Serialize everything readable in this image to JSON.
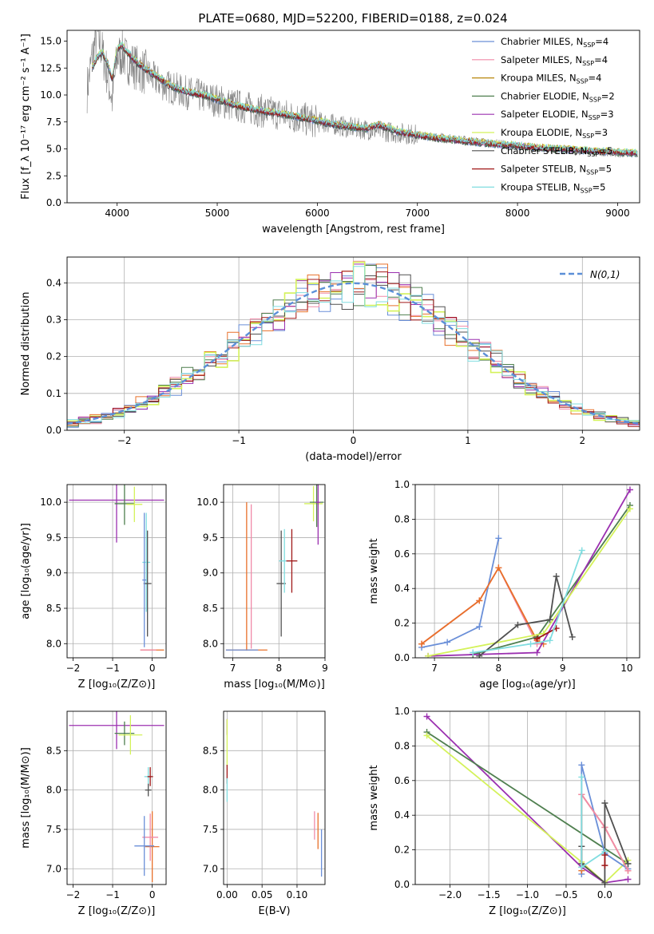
{
  "figure_title": "PLATE=0680, MJD=52200, FIBERID=0188, z=0.024",
  "chart_data": [
    {
      "id": "spectrum",
      "type": "line",
      "title": "PLATE=0680, MJD=52200, FIBERID=0188, z=0.024",
      "xlabel": "wavelength [Angstrom, rest frame]",
      "ylabel": "Flux [f_λ 10⁻¹⁷ erg cm⁻² s⁻¹ A⁻¹]",
      "xlim": [
        3500,
        9220
      ],
      "ylim": [
        0,
        16
      ],
      "xticks": [
        4000,
        5000,
        6000,
        7000,
        8000,
        9000
      ],
      "yticks": [
        0.0,
        2.5,
        5.0,
        7.5,
        10.0,
        12.5,
        15.0
      ],
      "grid": false,
      "legend_position": "upper-right",
      "observed_spectrum": {
        "color": "#808080",
        "x": [
          3700,
          3750,
          3800,
          3850,
          3900,
          3950,
          4000,
          4050,
          4100,
          4200,
          4300,
          4400,
          4500,
          4600,
          4700,
          4800,
          4900,
          5000,
          5100,
          5200,
          5300,
          5400,
          5500,
          5600,
          5700,
          5800,
          5900,
          6000,
          6100,
          6200,
          6300,
          6400,
          6500,
          6600,
          6700,
          6800,
          6900,
          7000,
          7100,
          7200,
          7300,
          7400,
          7500,
          7600,
          7700,
          7800,
          7900,
          8000,
          8100,
          8200,
          8300,
          8400,
          8500,
          8600,
          8700,
          8800,
          8900,
          9000,
          9100
        ],
        "y": [
          10.5,
          13.5,
          15.8,
          14.0,
          12.0,
          9.5,
          13.5,
          13.8,
          13.2,
          12.5,
          12.0,
          11.3,
          10.8,
          10.5,
          10.2,
          10.0,
          9.7,
          9.5,
          9.2,
          9.0,
          8.8,
          8.6,
          8.4,
          8.3,
          8.1,
          7.9,
          7.7,
          7.5,
          7.4,
          7.2,
          7.0,
          6.9,
          6.8,
          6.7,
          6.6,
          6.5,
          6.4,
          6.3,
          6.2,
          6.1,
          6.0,
          5.9,
          5.8,
          5.7,
          5.6,
          5.5,
          5.4,
          5.3,
          5.2,
          5.1,
          5.0,
          5.0,
          4.9,
          4.8,
          4.8,
          4.7,
          4.7,
          4.6,
          4.6
        ]
      },
      "series": [
        {
          "name": "Chabrier MILES, N_SSP=4",
          "label_main": "Chabrier MILES, N",
          "label_sub": "SSP",
          "label_tail": "=4",
          "color": "#6a8fd8"
        },
        {
          "name": "Salpeter MILES, N_SSP=4",
          "label_main": "Salpeter MILES, N",
          "label_sub": "SSP",
          "label_tail": "=4",
          "color": "#f08aa8"
        },
        {
          "name": "Kroupa MILES, N_SSP=4",
          "label_main": "Kroupa MILES, N",
          "label_sub": "SSP",
          "label_tail": "=4",
          "color": "#b8860b"
        },
        {
          "name": "Chabrier ELODIE, N_SSP=2",
          "label_main": "Chabrier ELODIE, N",
          "label_sub": "SSP",
          "label_tail": "=2",
          "color": "#4f7f4f"
        },
        {
          "name": "Salpeter ELODIE, N_SSP=3",
          "label_main": "Salpeter ELODIE, N",
          "label_sub": "SSP",
          "label_tail": "=3",
          "color": "#9b30b0"
        },
        {
          "name": "Kroupa ELODIE, N_SSP=3",
          "label_main": "Kroupa ELODIE, N",
          "label_sub": "SSP",
          "label_tail": "=3",
          "color": "#d4f25a"
        },
        {
          "name": "Chabrier STELIB, N_SSP=5",
          "label_main": "Chabrier STELIB, N",
          "label_sub": "SSP",
          "label_tail": "=5",
          "color": "#505050"
        },
        {
          "name": "Salpeter STELIB, N_SSP=5",
          "label_main": "Salpeter STELIB, N",
          "label_sub": "SSP",
          "label_tail": "=5",
          "color": "#a01818"
        },
        {
          "name": "Kroupa STELIB, N_SSP=5",
          "label_main": "Kroupa STELIB, N",
          "label_sub": "SSP",
          "label_tail": "=5",
          "color": "#80dde0"
        }
      ],
      "model_x": [
        3750,
        3800,
        3850,
        3900,
        3950,
        4000,
        4050,
        4100,
        4200,
        4300,
        4400,
        4500,
        4600,
        4700,
        4800,
        4900,
        5000,
        5200,
        5400,
        5600,
        5800,
        6000,
        6200,
        6400,
        6500,
        6600,
        6700,
        6800,
        7000,
        7200,
        7400,
        7600,
        7800,
        8000,
        8200,
        8400,
        8600,
        8800,
        9000,
        9200
      ],
      "model_y": [
        12.5,
        13.5,
        14.0,
        13.0,
        11.5,
        14.2,
        14.6,
        14.0,
        13.0,
        12.3,
        11.7,
        11.0,
        10.6,
        10.3,
        10.1,
        9.9,
        9.6,
        9.0,
        8.6,
        8.3,
        8.0,
        7.6,
        7.2,
        7.0,
        6.9,
        7.2,
        7.0,
        6.6,
        6.3,
        6.0,
        5.8,
        5.6,
        5.4,
        5.3,
        5.1,
        5.0,
        4.9,
        4.8,
        4.7,
        4.6
      ]
    },
    {
      "id": "residuals",
      "type": "line",
      "xlabel": "(data-model)/error",
      "ylabel": "Normed distribution",
      "xlim": [
        -2.5,
        2.5
      ],
      "ylim": [
        0,
        0.47
      ],
      "xticks": [
        -2,
        -1,
        0,
        1,
        2
      ],
      "yticks": [
        0.0,
        0.1,
        0.2,
        0.3,
        0.4
      ],
      "grid": true,
      "legend": "N(0,1)",
      "legend_position": "upper-right",
      "gaussian_color": "#5b8fd8",
      "bin_width": 0.1,
      "histogram_colors": [
        "#6a8fd8",
        "#f08aa8",
        "#e8702a",
        "#4f7f4f",
        "#9b30b0",
        "#d4f25a",
        "#505050",
        "#a01818",
        "#80dde0"
      ]
    },
    {
      "id": "age-vs-Z",
      "type": "scatter",
      "xlabel": "Z [log₁₀(Z/Z⊙)]",
      "ylabel": "age [log₁₀(age/yr)]",
      "xlim": [
        -2.15,
        0.35
      ],
      "ylim": [
        7.8,
        10.25
      ],
      "xticks": [
        -2,
        -1,
        0
      ],
      "yticks": [
        8.0,
        8.5,
        9.0,
        9.5,
        10.0
      ],
      "grid": true,
      "points": [
        {
          "x": -0.9,
          "y": 10.03,
          "xerr": 1.2,
          "yerr": 0.6,
          "color": "#9b30b0"
        },
        {
          "x": -0.7,
          "y": 9.98,
          "xerr": 0.25,
          "yerr": 0.3,
          "color": "#4f7f4f"
        },
        {
          "x": -0.45,
          "y": 9.97,
          "xerr": 0.2,
          "yerr": 0.25,
          "color": "#d4f25a"
        },
        {
          "x": -0.15,
          "y": 9.15,
          "xerr": 0.1,
          "yerr": 0.7,
          "color": "#80dde0"
        },
        {
          "x": -0.12,
          "y": 8.85,
          "xerr": 0.1,
          "yerr": 0.75,
          "color": "#505050"
        },
        {
          "x": -0.2,
          "y": 8.9,
          "xerr": 0.05,
          "yerr": 0.95,
          "color": "#6a8fd8"
        },
        {
          "x": 0.0,
          "y": 7.91,
          "xerr": 0.3,
          "yerr": 0.0,
          "color": "#e8702a"
        },
        {
          "x": -0.1,
          "y": 7.91,
          "xerr": 0.2,
          "yerr": 0.0,
          "color": "#f08aa8"
        }
      ]
    },
    {
      "id": "age-vs-mass",
      "type": "scatter",
      "xlabel": "mass [log₁₀(M/M⊙)]",
      "ylabel": "",
      "xlim": [
        6.8,
        9.0
      ],
      "ylim": [
        7.8,
        10.25
      ],
      "xticks": [
        7,
        8,
        9
      ],
      "yticks": [
        8.0,
        8.5,
        9.0,
        9.5,
        10.0
      ],
      "grid": true,
      "points": [
        {
          "x": 7.3,
          "y": 7.91,
          "xerr": 0.45,
          "yerr": 0.0,
          "color": "#e8702a"
        },
        {
          "x": 7.3,
          "y": 8.95,
          "xerr": 0.0,
          "yerr": 1.05,
          "color": "#e8702a"
        },
        {
          "x": 7.4,
          "y": 8.95,
          "xerr": 0.0,
          "yerr": 1.02,
          "color": "#f08aa8"
        },
        {
          "x": 7.2,
          "y": 7.91,
          "xerr": 0.35,
          "yerr": 0.0,
          "color": "#6a8fd8"
        },
        {
          "x": 8.05,
          "y": 8.85,
          "xerr": 0.1,
          "yerr": 0.75,
          "color": "#505050"
        },
        {
          "x": 8.12,
          "y": 9.17,
          "xerr": 0.12,
          "yerr": 0.45,
          "color": "#80dde0"
        },
        {
          "x": 8.28,
          "y": 9.17,
          "xerr": 0.12,
          "yerr": 0.45,
          "color": "#a01818"
        },
        {
          "x": 8.75,
          "y": 9.98,
          "xerr": 0.2,
          "yerr": 0.25,
          "color": "#d4f25a"
        },
        {
          "x": 8.82,
          "y": 10.0,
          "xerr": 0.15,
          "yerr": 0.35,
          "color": "#4f7f4f"
        },
        {
          "x": 8.85,
          "y": 10.0,
          "xerr": 0.05,
          "yerr": 0.6,
          "color": "#9b30b0"
        }
      ]
    },
    {
      "id": "weight-vs-age",
      "type": "line",
      "xlabel": "age [log₁₀(age/yr)]",
      "ylabel": "mass weight",
      "xlim": [
        6.7,
        10.2
      ],
      "ylim": [
        0,
        1.0
      ],
      "xticks": [
        7,
        8,
        9,
        10
      ],
      "yticks": [
        0.0,
        0.2,
        0.4,
        0.6,
        0.8,
        1.0
      ],
      "grid": true,
      "series": [
        {
          "color": "#6a8fd8",
          "x": [
            6.8,
            7.2,
            7.7,
            8.0
          ],
          "y": [
            0.06,
            0.09,
            0.18,
            0.69
          ]
        },
        {
          "color": "#f08aa8",
          "x": [
            6.8,
            7.7,
            8.0,
            8.6
          ],
          "y": [
            0.08,
            0.33,
            0.52,
            0.08
          ]
        },
        {
          "color": "#e8702a",
          "x": [
            6.8,
            7.7,
            8.0,
            8.6,
            8.7
          ],
          "y": [
            0.08,
            0.33,
            0.52,
            0.1,
            0.08
          ]
        },
        {
          "color": "#4f7f4f",
          "x": [
            7.6,
            8.6,
            10.05
          ],
          "y": [
            0.02,
            0.12,
            0.88
          ]
        },
        {
          "color": "#9b30b0",
          "x": [
            6.9,
            8.6,
            10.05
          ],
          "y": [
            0.01,
            0.03,
            0.97
          ]
        },
        {
          "color": "#d4f25a",
          "x": [
            6.9,
            8.7,
            10.05
          ],
          "y": [
            0.01,
            0.14,
            0.86
          ]
        },
        {
          "color": "#505050",
          "x": [
            7.7,
            8.3,
            8.8,
            8.9,
            9.15
          ],
          "y": [
            0.01,
            0.19,
            0.22,
            0.47,
            0.12
          ]
        },
        {
          "color": "#a01818",
          "x": [
            8.6,
            8.9
          ],
          "y": [
            0.11,
            0.17
          ]
        },
        {
          "color": "#80dde0",
          "x": [
            7.6,
            8.5,
            8.8,
            9.3
          ],
          "y": [
            0.03,
            0.08,
            0.1,
            0.62
          ]
        }
      ]
    },
    {
      "id": "mass-vs-Z",
      "type": "scatter",
      "xlabel": "Z [log₁₀(Z/Z⊙)]",
      "ylabel": "mass [log₁₀(M/M⊙)]",
      "xlim": [
        -2.15,
        0.35
      ],
      "ylim": [
        6.8,
        9.0
      ],
      "xticks": [
        -2,
        -1,
        0
      ],
      "yticks": [
        7.0,
        7.5,
        8.0,
        8.5
      ],
      "grid": true,
      "points": [
        {
          "x": -0.9,
          "y": 8.82,
          "xerr": 1.2,
          "yerr": 0.3,
          "color": "#9b30b0"
        },
        {
          "x": -0.7,
          "y": 8.72,
          "xerr": 0.25,
          "yerr": 0.15,
          "color": "#4f7f4f"
        },
        {
          "x": -0.55,
          "y": 8.7,
          "xerr": 0.3,
          "yerr": 0.25,
          "color": "#d4f25a"
        },
        {
          "x": -0.1,
          "y": 8.17,
          "xerr": 0.1,
          "yerr": 0.12,
          "color": "#80dde0"
        },
        {
          "x": -0.05,
          "y": 8.17,
          "xerr": 0.07,
          "yerr": 0.12,
          "color": "#a01818"
        },
        {
          "x": -0.1,
          "y": 8.0,
          "xerr": 0.08,
          "yerr": 0.08,
          "color": "#505050"
        },
        {
          "x": 0.0,
          "y": 7.28,
          "xerr": 0.18,
          "yerr": 0.45,
          "color": "#e8702a"
        },
        {
          "x": -0.05,
          "y": 7.4,
          "xerr": 0.2,
          "yerr": 0.3,
          "color": "#f08aa8"
        },
        {
          "x": -0.2,
          "y": 7.29,
          "xerr": 0.25,
          "yerr": 0.38,
          "color": "#6a8fd8"
        }
      ]
    },
    {
      "id": "mass-vs-EBV",
      "type": "scatter",
      "xlabel": "E(B-V)",
      "ylabel": "",
      "xlim": [
        -0.005,
        0.14
      ],
      "ylim": [
        6.8,
        9.0
      ],
      "xticks": [
        0.0,
        0.05,
        0.1
      ],
      "yticks": [
        7.0,
        7.5,
        8.0,
        8.5
      ],
      "grid": true,
      "points": [
        {
          "x": 0.0,
          "y": 8.8,
          "xerr": 0.0,
          "yerr": 0.1,
          "color": "#9b30b0"
        },
        {
          "x": 0.0,
          "y": 8.6,
          "xerr": 0.0,
          "yerr": 0.3,
          "color": "#d4f25a"
        },
        {
          "x": 0.0,
          "y": 8.2,
          "xerr": 0.0,
          "yerr": 0.12,
          "color": "#a01818"
        },
        {
          "x": 0.0,
          "y": 8.0,
          "xerr": 0.0,
          "yerr": 0.15,
          "color": "#80dde0"
        },
        {
          "x": 0.125,
          "y": 7.55,
          "xerr": 0.0,
          "yerr": 0.18,
          "color": "#f08aa8"
        },
        {
          "x": 0.13,
          "y": 7.48,
          "xerr": 0.0,
          "yerr": 0.23,
          "color": "#e8702a"
        },
        {
          "x": 0.135,
          "y": 7.2,
          "xerr": 0.0,
          "yerr": 0.3,
          "color": "#6a8fd8"
        }
      ]
    },
    {
      "id": "weight-vs-Z",
      "type": "line",
      "xlabel": "Z [log₁₀(Z/Z⊙)]",
      "ylabel": "mass weight",
      "xlim": [
        -2.45,
        0.45
      ],
      "ylim": [
        0,
        1.0
      ],
      "xticks": [
        -2.0,
        -1.5,
        -1.0,
        -0.5,
        0.0
      ],
      "yticks": [
        0.0,
        0.2,
        0.4,
        0.6,
        0.8,
        1.0
      ],
      "grid": true,
      "series": [
        {
          "color": "#9b30b0",
          "x": [
            -2.3,
            -0.3,
            0.0,
            0.3
          ],
          "y": [
            0.97,
            0.1,
            0.01,
            0.03
          ]
        },
        {
          "color": "#4f7f4f",
          "x": [
            -2.3,
            0.3
          ],
          "y": [
            0.88,
            0.12
          ]
        },
        {
          "color": "#d4f25a",
          "x": [
            -2.3,
            -0.3,
            0.0,
            0.3
          ],
          "y": [
            0.86,
            0.13,
            0.01,
            0.14
          ]
        },
        {
          "color": "#6a8fd8",
          "x": [
            -0.3,
            -0.3,
            0.0,
            0.3
          ],
          "y": [
            0.06,
            0.69,
            0.18,
            0.09
          ]
        },
        {
          "color": "#e8702a",
          "x": [
            -0.3,
            -0.3,
            0.0,
            0.3
          ],
          "y": [
            0.08,
            0.52,
            0.33,
            0.08
          ]
        },
        {
          "color": "#f08aa8",
          "x": [
            -0.3,
            0.0,
            0.3
          ],
          "y": [
            0.52,
            0.33,
            0.08
          ]
        },
        {
          "color": "#505050",
          "x": [
            -0.3,
            -0.3,
            0.0,
            0.0,
            0.3
          ],
          "y": [
            0.22,
            0.12,
            0.01,
            0.47,
            0.12
          ]
        },
        {
          "color": "#80dde0",
          "x": [
            -0.3,
            -0.3,
            0.0
          ],
          "y": [
            0.62,
            0.1,
            0.19
          ]
        },
        {
          "color": "#a01818",
          "x": [
            0.0,
            0.0
          ],
          "y": [
            0.11,
            0.17
          ]
        }
      ]
    }
  ]
}
